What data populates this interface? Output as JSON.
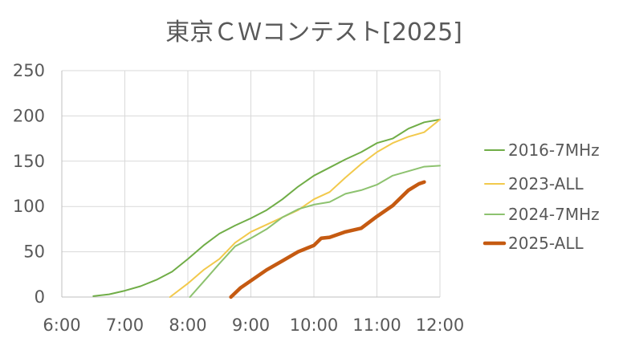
{
  "chart_data": {
    "type": "line",
    "title": "東京ＣＷコンテスト[2025]",
    "xlabel": "",
    "ylabel": "",
    "x_tick_labels": [
      "6:00",
      "7:00",
      "8:00",
      "9:00",
      "10:00",
      "11:00",
      "12:00"
    ],
    "xlim_hours": [
      6,
      12
    ],
    "ylim": [
      0,
      250
    ],
    "y_ticks": [
      0,
      50,
      100,
      150,
      200,
      250
    ],
    "grid": true,
    "legend_position": "right",
    "series": [
      {
        "name": "2016-7MHz",
        "color": "#70ad47",
        "width": "thin",
        "points": [
          [
            "6:30",
            1
          ],
          [
            "6:45",
            3
          ],
          [
            "7:00",
            7
          ],
          [
            "7:15",
            12
          ],
          [
            "7:30",
            19
          ],
          [
            "7:45",
            28
          ],
          [
            "8:00",
            42
          ],
          [
            "8:15",
            57
          ],
          [
            "8:30",
            70
          ],
          [
            "8:45",
            79
          ],
          [
            "9:00",
            87
          ],
          [
            "9:15",
            96
          ],
          [
            "9:30",
            108
          ],
          [
            "9:45",
            122
          ],
          [
            "10:00",
            134
          ],
          [
            "10:15",
            143
          ],
          [
            "10:30",
            152
          ],
          [
            "10:45",
            160
          ],
          [
            "11:00",
            170
          ],
          [
            "11:15",
            175
          ],
          [
            "11:30",
            186
          ],
          [
            "11:45",
            193
          ],
          [
            "12:00",
            196
          ]
        ]
      },
      {
        "name": "2023-ALL",
        "color": "#f2c94c",
        "width": "thin",
        "points": [
          [
            "7:43",
            0
          ],
          [
            "8:00",
            15
          ],
          [
            "8:15",
            30
          ],
          [
            "8:30",
            42
          ],
          [
            "8:45",
            60
          ],
          [
            "9:00",
            72
          ],
          [
            "9:15",
            80
          ],
          [
            "9:30",
            88
          ],
          [
            "9:45",
            96
          ],
          [
            "10:00",
            108
          ],
          [
            "10:15",
            116
          ],
          [
            "10:30",
            132
          ],
          [
            "10:45",
            147
          ],
          [
            "11:00",
            160
          ],
          [
            "11:15",
            170
          ],
          [
            "11:30",
            177
          ],
          [
            "11:45",
            182
          ],
          [
            "12:00",
            196
          ]
        ]
      },
      {
        "name": "2024-7MHz",
        "color": "#8dc26f",
        "width": "thin",
        "points": [
          [
            "8:02",
            0
          ],
          [
            "8:15",
            17
          ],
          [
            "8:30",
            37
          ],
          [
            "8:45",
            56
          ],
          [
            "9:00",
            65
          ],
          [
            "9:15",
            75
          ],
          [
            "9:30",
            88
          ],
          [
            "9:45",
            97
          ],
          [
            "10:00",
            102
          ],
          [
            "10:15",
            105
          ],
          [
            "10:30",
            114
          ],
          [
            "10:45",
            118
          ],
          [
            "11:00",
            124
          ],
          [
            "11:15",
            134
          ],
          [
            "11:30",
            139
          ],
          [
            "11:45",
            144
          ],
          [
            "12:00",
            145
          ]
        ]
      },
      {
        "name": "2025-ALL",
        "color": "#c55a11",
        "width": "thick",
        "points": [
          [
            "8:41",
            0
          ],
          [
            "8:50",
            10
          ],
          [
            "9:00",
            18
          ],
          [
            "9:15",
            30
          ],
          [
            "9:30",
            40
          ],
          [
            "9:45",
            50
          ],
          [
            "10:00",
            57
          ],
          [
            "10:07",
            65
          ],
          [
            "10:15",
            66
          ],
          [
            "10:30",
            72
          ],
          [
            "10:45",
            76
          ],
          [
            "11:00",
            89
          ],
          [
            "11:15",
            101
          ],
          [
            "11:30",
            118
          ],
          [
            "11:40",
            125
          ],
          [
            "11:45",
            127
          ]
        ]
      }
    ]
  }
}
